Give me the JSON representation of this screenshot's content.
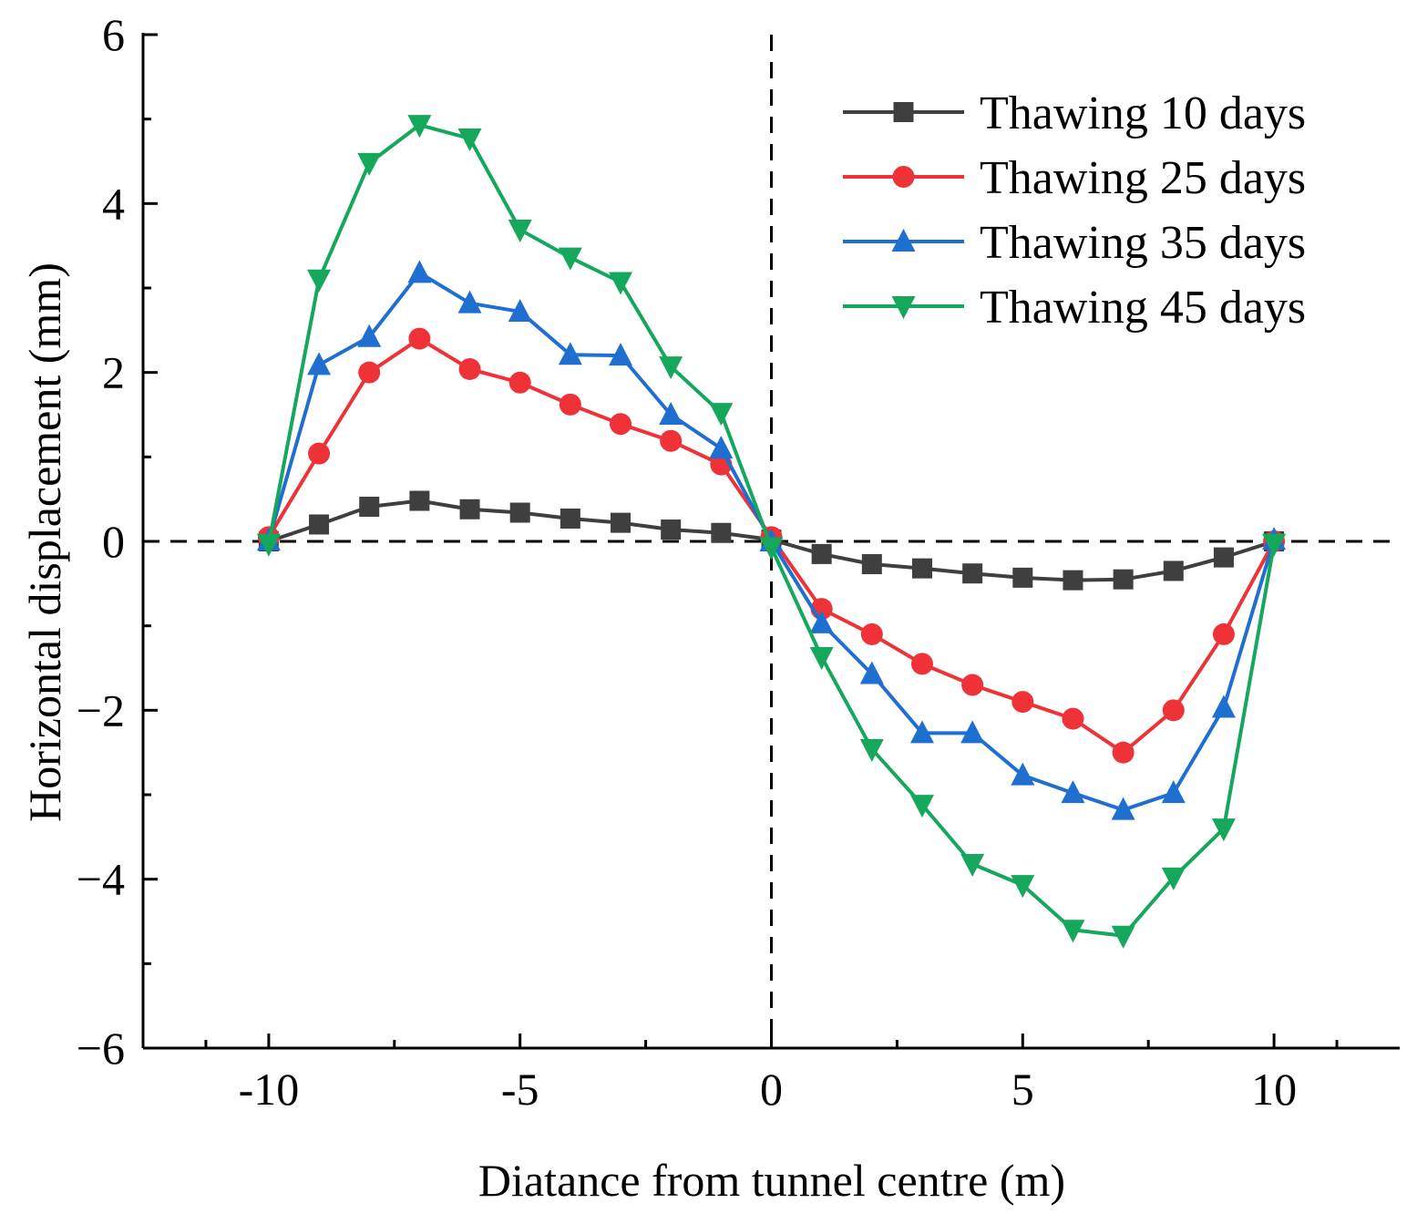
{
  "chart_data": {
    "type": "line",
    "title": "",
    "xlabel": "Diatance from tunnel centre (m)",
    "ylabel": "Horizontal displacement (mm)",
    "xlim": [
      -12.5,
      12.5
    ],
    "ylim": [
      -6,
      6
    ],
    "x_major_ticks": [
      -10,
      -5,
      0,
      5,
      10
    ],
    "x_tick_labels": [
      "-10",
      "-5",
      "0",
      "5",
      "10"
    ],
    "y_major_ticks": [
      -6,
      -4,
      -2,
      0,
      2,
      4,
      6
    ],
    "y_tick_labels": [
      "−6",
      "−4",
      "−2",
      "0",
      "2",
      "4",
      "6"
    ],
    "reference_lines": {
      "x": 0,
      "y": 0
    },
    "legend_position": "top-right",
    "x": [
      -10,
      -9,
      -8,
      -7,
      -6,
      -5,
      -4,
      -3,
      -2,
      -1,
      0,
      1,
      2,
      3,
      4,
      5,
      6,
      7,
      8,
      9,
      10
    ],
    "series": [
      {
        "name": "Thawing 10 days",
        "color": "#3f3f3f",
        "marker": "square",
        "values": [
          0,
          0.2,
          0.41,
          0.48,
          0.38,
          0.34,
          0.27,
          0.22,
          0.14,
          0.1,
          0.02,
          -0.15,
          -0.27,
          -0.32,
          -0.38,
          -0.43,
          -0.46,
          -0.45,
          -0.35,
          -0.19,
          0
        ]
      },
      {
        "name": "Thawing 25 days",
        "color": "#ee3237",
        "marker": "circle",
        "values": [
          0.05,
          1.04,
          2.0,
          2.4,
          2.04,
          1.88,
          1.62,
          1.39,
          1.19,
          0.91,
          0.05,
          -0.8,
          -1.1,
          -1.45,
          -1.7,
          -1.9,
          -2.1,
          -2.5,
          -2.0,
          -1.1,
          0
        ]
      },
      {
        "name": "Thawing 35 days",
        "color": "#1f6fd1",
        "marker": "triangle-up",
        "values": [
          0.01,
          2.09,
          2.42,
          3.18,
          2.82,
          2.72,
          2.21,
          2.2,
          1.5,
          1.1,
          0.0,
          -0.97,
          -1.57,
          -2.27,
          -2.27,
          -2.77,
          -2.98,
          -3.18,
          -2.98,
          -1.97,
          0.02
        ]
      },
      {
        "name": "Thawing 45 days",
        "color": "#15a75b",
        "marker": "triangle-down",
        "values": [
          -0.03,
          3.1,
          4.48,
          4.93,
          4.77,
          3.69,
          3.36,
          3.07,
          2.07,
          1.52,
          -0.07,
          -1.37,
          -2.46,
          -3.12,
          -3.82,
          -4.07,
          -4.6,
          -4.67,
          -3.98,
          -3.4,
          -0.03
        ]
      }
    ]
  }
}
